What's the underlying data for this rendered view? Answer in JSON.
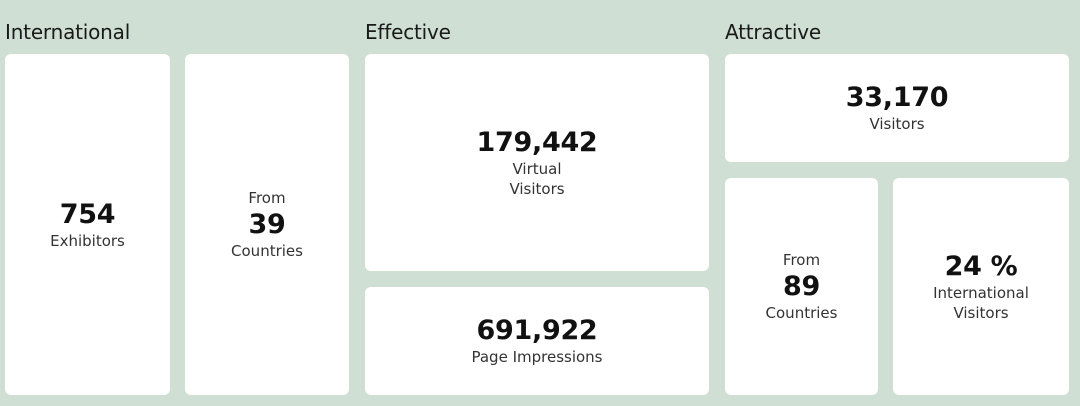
{
  "sections": {
    "international": {
      "title": "International"
    },
    "effective": {
      "title": "Effective"
    },
    "attractive": {
      "title": "Attractive"
    }
  },
  "cards": {
    "exhibitors": {
      "value": "754",
      "label": "Exhibitors"
    },
    "countries_exhibitors": {
      "prefix": "From",
      "value": "39",
      "label": "Countries"
    },
    "virtual_visitors": {
      "value": "179,442",
      "label_line1": "Virtual",
      "label_line2": "Visitors"
    },
    "page_impressions": {
      "value": "691,922",
      "label": "Page Impressions"
    },
    "visitors": {
      "value": "33,170",
      "label": "Visitors"
    },
    "countries_visitors": {
      "prefix": "From",
      "value": "89",
      "label": "Countries"
    },
    "international_visitors": {
      "value": "24 %",
      "label_line1": "International",
      "label_line2": "Visitors"
    }
  },
  "colors": {
    "background": "#cfdfd4",
    "card": "#ffffff"
  }
}
